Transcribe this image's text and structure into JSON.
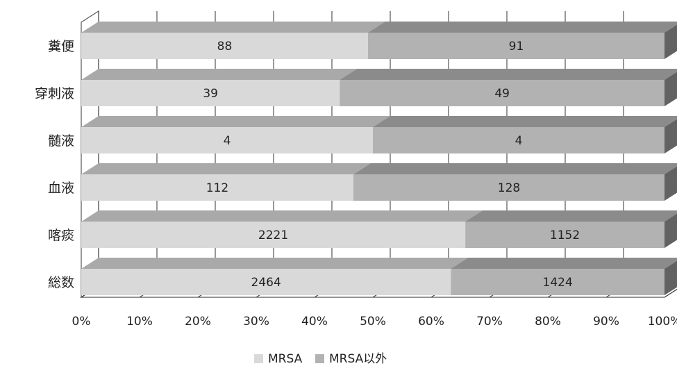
{
  "chart_data": {
    "type": "bar",
    "orientation": "horizontal",
    "stacking": "percent",
    "categories": [
      "糞便",
      "穿刺液",
      "髄液",
      "血液",
      "喀痰",
      "総数"
    ],
    "series": [
      {
        "name": "MRSA",
        "values": [
          88,
          39,
          4,
          112,
          2221,
          2464
        ],
        "color": "#d9d9d9"
      },
      {
        "name": "MRSA以外",
        "values": [
          91,
          49,
          4,
          128,
          1152,
          1424
        ],
        "color": "#b2b2b2"
      }
    ],
    "xticks": [
      "0%",
      "10%",
      "20%",
      "30%",
      "40%",
      "50%",
      "60%",
      "70%",
      "80%",
      "90%",
      "100%"
    ],
    "xlim": [
      0,
      100
    ],
    "grid": true,
    "legend_position": "bottom"
  }
}
